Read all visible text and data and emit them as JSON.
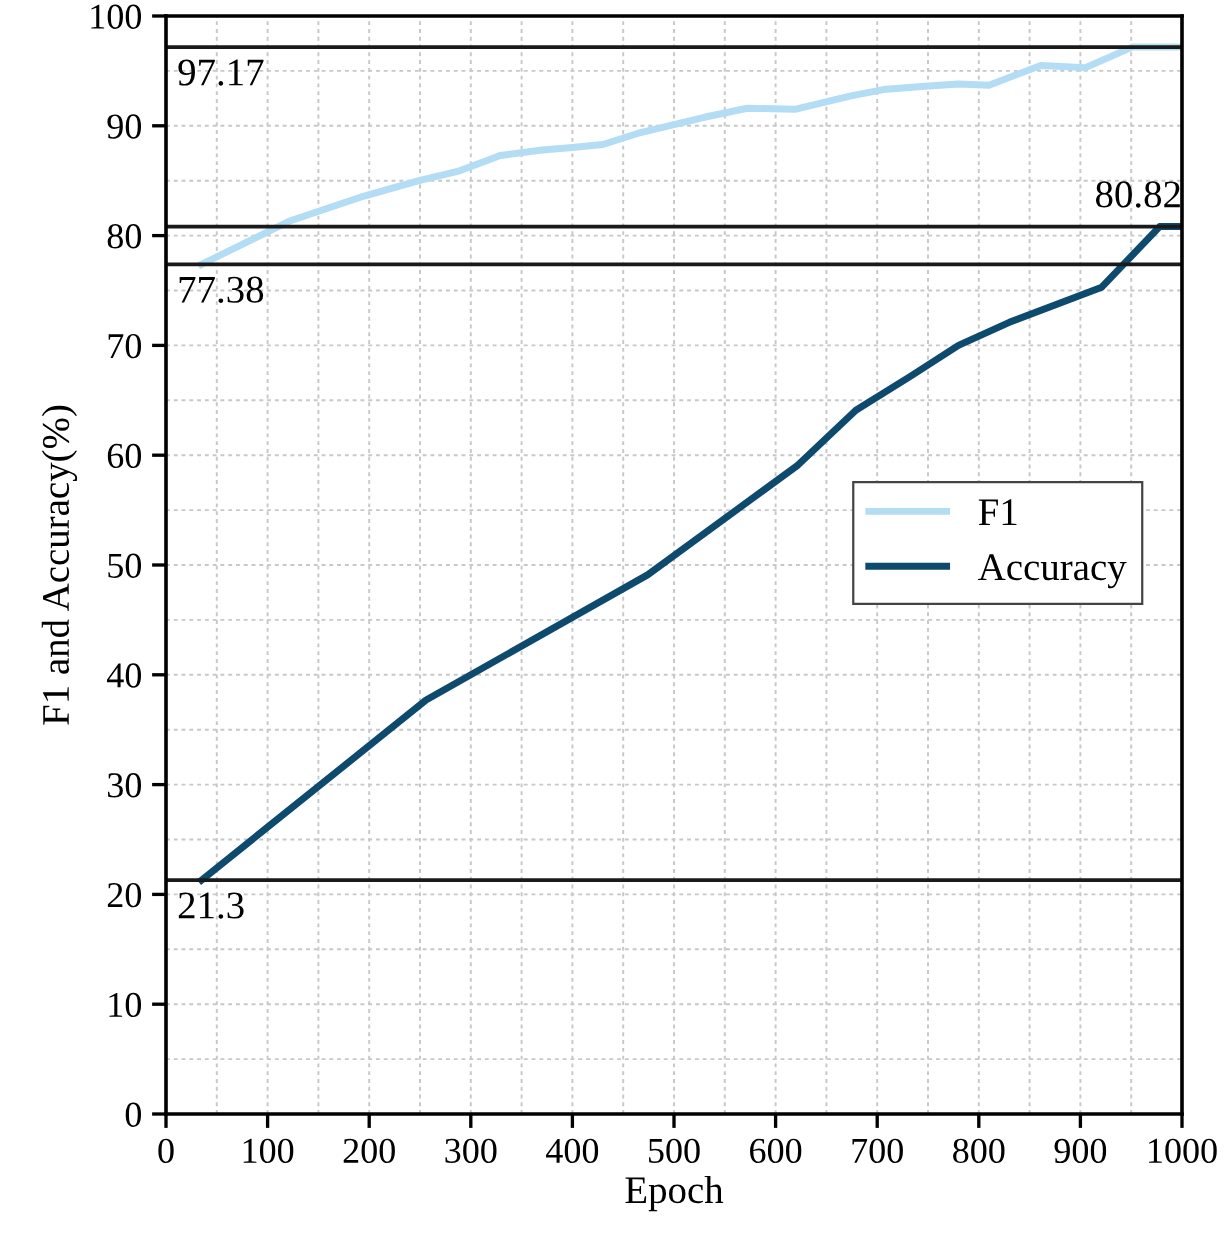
{
  "chart_data": {
    "type": "line",
    "xlabel": "Epoch",
    "ylabel": "F1 and Accuracy(%)",
    "xlim": [
      0,
      1000
    ],
    "xticks": [
      0,
      100,
      200,
      300,
      400,
      500,
      600,
      700,
      800,
      900,
      1000
    ],
    "ylim": [
      0,
      100
    ],
    "yticks": [
      0,
      10,
      20,
      30,
      40,
      50,
      60,
      70,
      80,
      90,
      100
    ],
    "grid": true,
    "legend": "right",
    "line_style": "solid",
    "marker": "none",
    "series": [
      {
        "name": "F1",
        "color": "#b3dcf5",
        "x": [
          35,
          121,
          195,
          249,
          289,
          329,
          370,
          397,
          430,
          464,
          504,
          531,
          572,
          619,
          673,
          706,
          747,
          780,
          810,
          861,
          905,
          951,
          1000
        ],
        "values": [
          77.38,
          81.3,
          83.6,
          85.0,
          85.9,
          87.3,
          87.8,
          88.0,
          88.3,
          89.3,
          90.2,
          90.8,
          91.6,
          91.5,
          92.7,
          93.3,
          93.6,
          93.8,
          93.7,
          95.5,
          95.3,
          97.17,
          97.17
        ]
      },
      {
        "name": "Accuracy",
        "color": "#0d4a6e",
        "x": [
          35,
          256,
          474,
          622,
          679,
          733,
          780,
          830,
          921,
          978,
          1000
        ],
        "values": [
          21.3,
          37.7,
          49.1,
          59.1,
          64.1,
          67.2,
          70.0,
          72.1,
          75.3,
          80.82,
          80.82
        ]
      }
    ],
    "ref_lines": [
      {
        "axis": "y",
        "value": 97.17,
        "label": "97.17",
        "color": "#1a1a1a"
      },
      {
        "axis": "y",
        "value": 80.82,
        "label": "80.82",
        "color": "#1a1a1a"
      },
      {
        "axis": "y",
        "value": 77.38,
        "label": "77.38",
        "color": "#1a1a1a"
      },
      {
        "axis": "y",
        "value": 21.3,
        "label": "21.3",
        "color": "#1a1a1a"
      }
    ]
  }
}
